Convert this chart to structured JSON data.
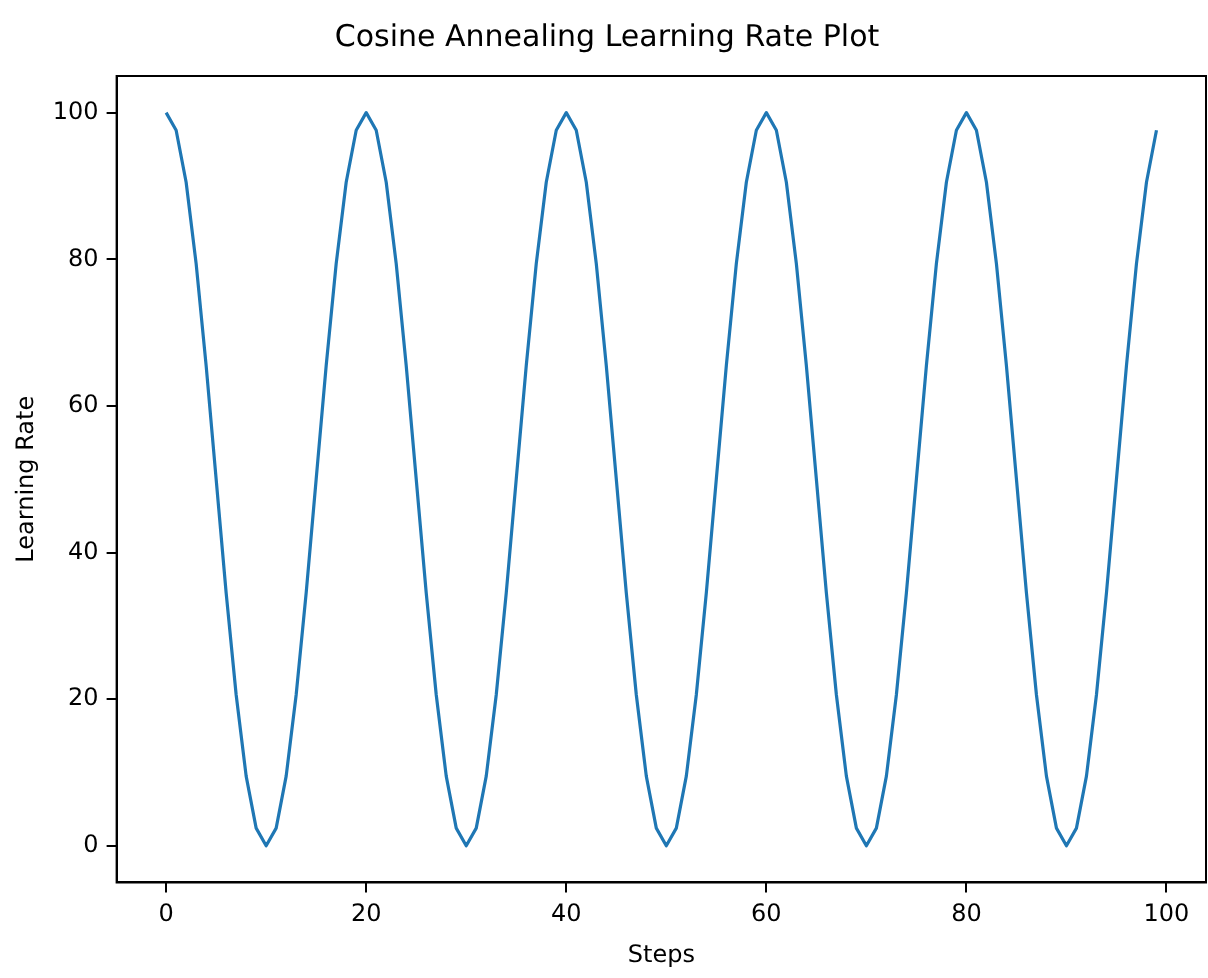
{
  "chart_data": {
    "type": "line",
    "title": "Cosine Annealing Learning Rate Plot",
    "xlabel": "Steps",
    "ylabel": "Learning Rate",
    "x": [
      0,
      1,
      2,
      3,
      4,
      5,
      6,
      7,
      8,
      9,
      10,
      11,
      12,
      13,
      14,
      15,
      16,
      17,
      18,
      19,
      20,
      21,
      22,
      23,
      24,
      25,
      26,
      27,
      28,
      29,
      30,
      31,
      32,
      33,
      34,
      35,
      36,
      37,
      38,
      39,
      40,
      41,
      42,
      43,
      44,
      45,
      46,
      47,
      48,
      49,
      50,
      51,
      52,
      53,
      54,
      55,
      56,
      57,
      58,
      59,
      60,
      61,
      62,
      63,
      64,
      65,
      66,
      67,
      68,
      69,
      70,
      71,
      72,
      73,
      74,
      75,
      76,
      77,
      78,
      79,
      80,
      81,
      82,
      83,
      84,
      85,
      86,
      87,
      88,
      89,
      90,
      91,
      92,
      93,
      94,
      95,
      96,
      97,
      98,
      99
    ],
    "series": [
      {
        "color": "#1f77b4",
        "values": [
          100,
          97.6,
          90.5,
          79.4,
          65.5,
          50,
          34.5,
          20.6,
          9.5,
          2.4,
          0,
          2.4,
          9.5,
          20.6,
          34.5,
          50,
          65.5,
          79.4,
          90.5,
          97.6,
          100,
          97.6,
          90.5,
          79.4,
          65.5,
          50,
          34.5,
          20.6,
          9.5,
          2.4,
          0,
          2.4,
          9.5,
          20.6,
          34.5,
          50,
          65.5,
          79.4,
          90.5,
          97.6,
          100,
          97.6,
          90.5,
          79.4,
          65.5,
          50,
          34.5,
          20.6,
          9.5,
          2.4,
          0,
          2.4,
          9.5,
          20.6,
          34.5,
          50,
          65.5,
          79.4,
          90.5,
          97.6,
          100,
          97.6,
          90.5,
          79.4,
          65.5,
          50,
          34.5,
          20.6,
          9.5,
          2.4,
          0,
          2.4,
          9.5,
          20.6,
          34.5,
          50,
          65.5,
          79.4,
          90.5,
          97.6,
          100,
          97.6,
          90.5,
          79.4,
          65.5,
          50,
          34.5,
          20.6,
          9.5,
          2.4,
          0,
          2.4,
          9.5,
          20.6,
          34.5,
          50,
          65.5,
          79.4,
          90.5,
          97.6
        ]
      }
    ],
    "xlim": [
      -4.95,
      103.95
    ],
    "ylim": [
      -5,
      105
    ],
    "xticks": [
      0,
      20,
      40,
      60,
      80,
      100
    ],
    "yticks": [
      0,
      20,
      40,
      60,
      80,
      100
    ],
    "grid": false,
    "legend": false,
    "marker": "none",
    "line_style": "solid"
  }
}
